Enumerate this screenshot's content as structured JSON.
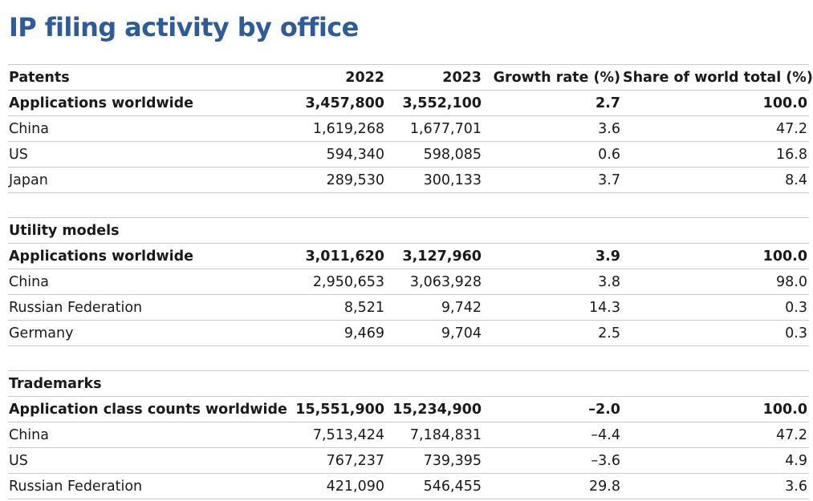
{
  "title": "IP filing activity by office",
  "columns": [
    "2022",
    "2023",
    "Growth rate (%)",
    "Share of world total (%)"
  ],
  "sections": [
    {
      "name": "Patents",
      "total": {
        "label": "Applications worldwide",
        "v2022": "3,457,800",
        "v2023": "3,552,100",
        "growth": "2.7",
        "share": "100.0"
      },
      "rows": [
        {
          "label": "China",
          "v2022": "1,619,268",
          "v2023": "1,677,701",
          "growth": "3.6",
          "share": "47.2"
        },
        {
          "label": "US",
          "v2022": "594,340",
          "v2023": "598,085",
          "growth": "0.6",
          "share": "16.8"
        },
        {
          "label": "Japan",
          "v2022": "289,530",
          "v2023": "300,133",
          "growth": "3.7",
          "share": "8.4"
        }
      ]
    },
    {
      "name": "Utility models",
      "total": {
        "label": "Applications worldwide",
        "v2022": "3,011,620",
        "v2023": "3,127,960",
        "growth": "3.9",
        "share": "100.0"
      },
      "rows": [
        {
          "label": "China",
          "v2022": "2,950,653",
          "v2023": "3,063,928",
          "growth": "3.8",
          "share": "98.0"
        },
        {
          "label": "Russian Federation",
          "v2022": "8,521",
          "v2023": "9,742",
          "growth": "14.3",
          "share": "0.3"
        },
        {
          "label": "Germany",
          "v2022": "9,469",
          "v2023": "9,704",
          "growth": "2.5",
          "share": "0.3"
        }
      ]
    },
    {
      "name": "Trademarks",
      "total": {
        "label": "Application class counts worldwide",
        "v2022": "15,551,900",
        "v2023": "15,234,900",
        "growth": "–2.0",
        "share": "100.0"
      },
      "rows": [
        {
          "label": "China",
          "v2022": "7,513,424",
          "v2023": "7,184,831",
          "growth": "–4.4",
          "share": "47.2"
        },
        {
          "label": "US",
          "v2022": "767,237",
          "v2023": "739,395",
          "growth": "–3.6",
          "share": "4.9"
        },
        {
          "label": "Russian Federation",
          "v2022": "421,090",
          "v2023": "546,455",
          "growth": "29.8",
          "share": "3.6"
        }
      ]
    }
  ]
}
